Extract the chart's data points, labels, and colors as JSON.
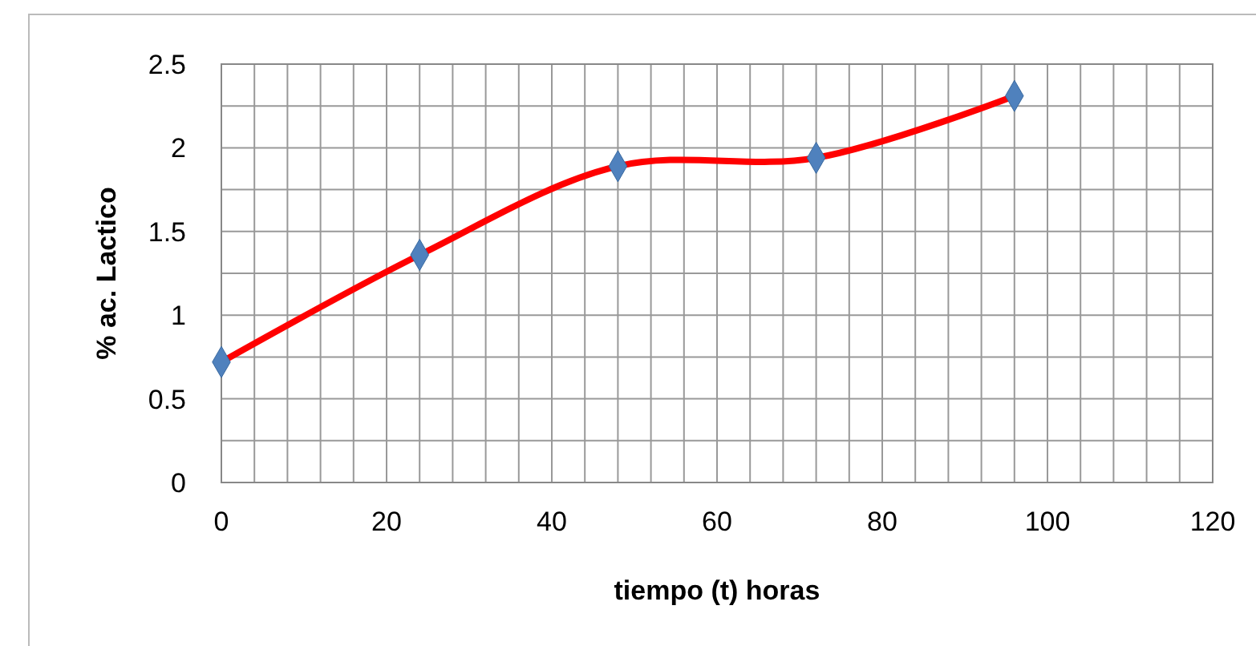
{
  "chart_data": {
    "type": "line",
    "xlabel": "tiempo (t) horas",
    "ylabel": "% ac. Lactico",
    "x": [
      0,
      24,
      48,
      72,
      96
    ],
    "series": [
      {
        "color": "#ff0000",
        "values": [
          0.72,
          1.36,
          1.89,
          1.94,
          2.31
        ]
      }
    ],
    "marker": "diamond",
    "line_style": "solid",
    "grid": true,
    "xlim": [
      0,
      120
    ],
    "xticks": [
      0,
      {
        "value": 4,
        "label": null
      },
      {
        "value": 8,
        "label": null
      },
      {
        "value": 12,
        "label": null
      },
      {
        "value": 16,
        "label": null
      },
      20,
      {
        "value": 24,
        "label": null
      },
      {
        "value": 28,
        "label": null
      },
      {
        "value": 32,
        "label": null
      },
      {
        "value": 36,
        "label": null
      },
      40,
      {
        "value": 44,
        "label": null
      },
      {
        "value": 48,
        "label": null
      },
      {
        "value": 52,
        "label": null
      },
      {
        "value": 56,
        "label": null
      },
      60,
      {
        "value": 64,
        "label": null
      },
      {
        "value": 68,
        "label": null
      },
      {
        "value": 72,
        "label": null
      },
      {
        "value": 76,
        "label": null
      },
      80,
      {
        "value": 84,
        "label": null
      },
      {
        "value": 88,
        "label": null
      },
      {
        "value": 92,
        "label": null
      },
      {
        "value": 96,
        "label": null
      },
      100,
      {
        "value": 104,
        "label": null
      },
      {
        "value": 108,
        "label": null
      },
      {
        "value": 112,
        "label": null
      },
      {
        "value": 116,
        "label": null
      },
      120
    ],
    "ylim": [
      0,
      2.5
    ],
    "yticks": [
      0,
      {
        "value": 0.25,
        "label": null
      },
      0.5,
      {
        "value": 0.75,
        "label": null
      },
      1,
      {
        "value": 1.25,
        "label": null
      },
      1.5,
      {
        "value": 1.75,
        "label": null
      },
      2,
      {
        "value": 2.25,
        "label": null
      },
      2.5
    ]
  }
}
